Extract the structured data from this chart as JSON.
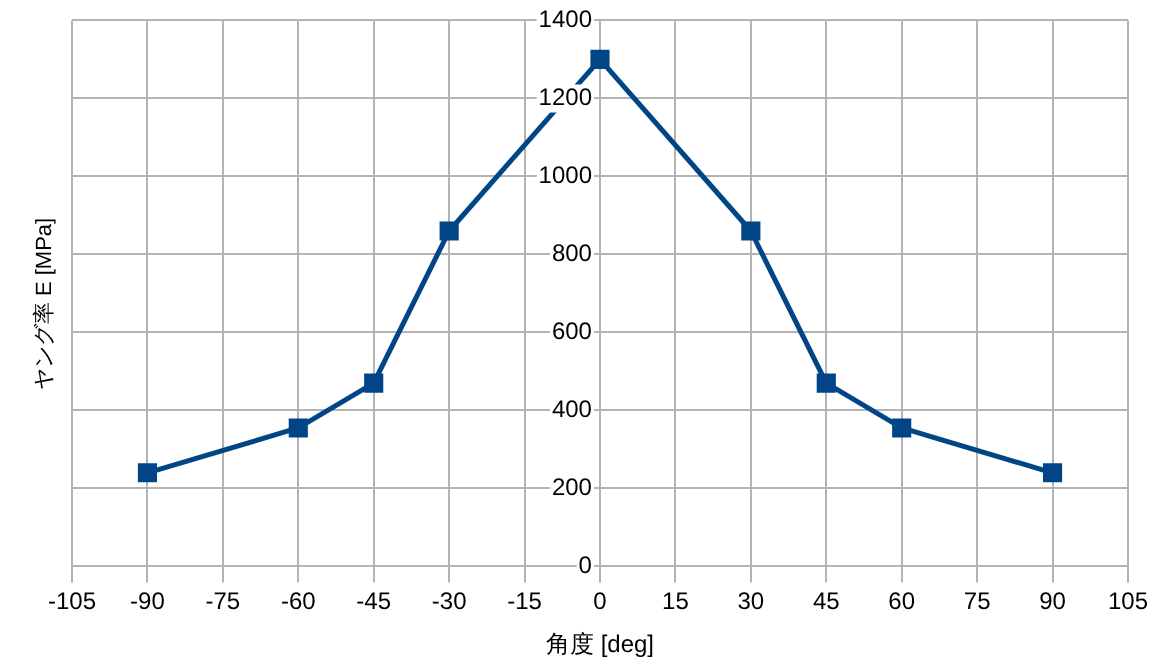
{
  "chart_data": {
    "type": "line",
    "xlabel": "角度 [deg]",
    "ylabel": "ヤング率 E [MPa]",
    "x": [
      -90,
      -60,
      -45,
      -30,
      0,
      30,
      45,
      60,
      90
    ],
    "series": [
      {
        "color": "#004586",
        "values": [
          240,
          355,
          470,
          860,
          1300,
          860,
          470,
          355,
          240
        ]
      }
    ],
    "xlim": [
      -105,
      105
    ],
    "xticks": [
      -105,
      -90,
      -75,
      -60,
      -45,
      -30,
      -15,
      0,
      15,
      30,
      45,
      60,
      75,
      90,
      105
    ],
    "ylim": [
      0,
      1400
    ],
    "yticks": [
      0,
      200,
      400,
      600,
      800,
      1000,
      1200,
      1400
    ],
    "grid": true,
    "legend": false,
    "marker": "square",
    "line_style": "solid"
  }
}
